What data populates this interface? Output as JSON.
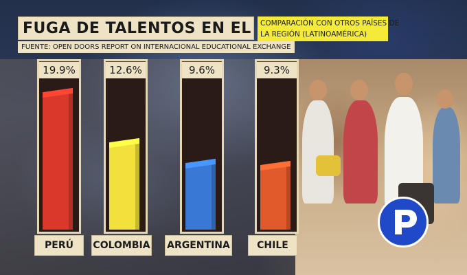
{
  "header": {
    "title": "FUGA DE TALENTOS EN EL PERÚ",
    "subtitle_line1": "COMPARACIÓN CON OTROS PAÍSES DE",
    "subtitle_line2": "LA REGIÓN (LATINOAMÉRICA)",
    "source": "FUENTE: OPEN DOORS REPORT ON INTERNACIONAL EDUCATIONAL EXCHANGE"
  },
  "chart_data": {
    "type": "bar",
    "categories": [
      "PERÚ",
      "COLOMBIA",
      "ARGENTINA",
      "CHILE"
    ],
    "values": [
      19.9,
      12.6,
      9.6,
      9.3
    ],
    "value_labels": [
      "19.9%",
      "12.6%",
      "9.6%",
      "9.3%"
    ],
    "colors": [
      "#d9382a",
      "#f2e13a",
      "#3a78d6",
      "#e05a2c"
    ],
    "title": "FUGA DE TALENTOS EN EL PERÚ",
    "xlabel": "",
    "ylabel": "",
    "grid": false,
    "legend": "none"
  },
  "logo": {
    "name": "peru21-logo-icon",
    "color": "#1f49c8"
  }
}
